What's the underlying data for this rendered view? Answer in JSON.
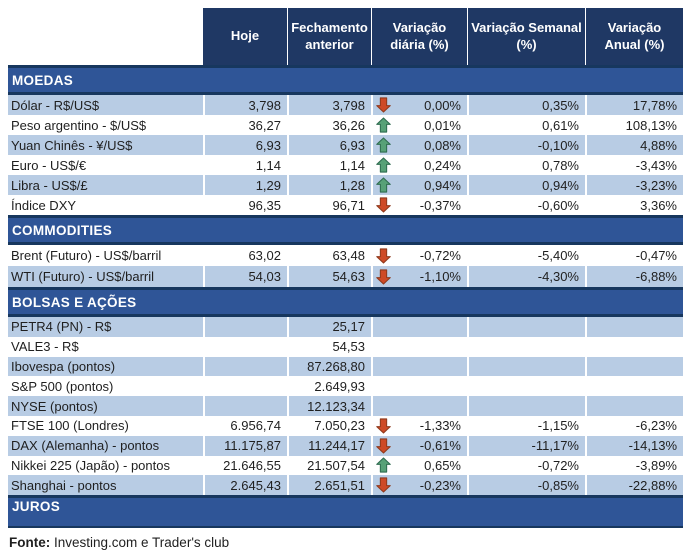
{
  "header": {
    "columns": [
      "Hoje",
      "Fechamento anterior",
      "Variação diária (%)",
      "Variação Semanal (%)",
      "Variação Anual (%)"
    ]
  },
  "sections": [
    {
      "title": "MOEDAS",
      "rows": [
        {
          "label": "Dólar - R$/US$",
          "hoje": "3,798",
          "fechamento": "3,798",
          "arrow": "down",
          "diaria": "0,00%",
          "semanal": "0,35%",
          "anual": "17,78%"
        },
        {
          "label": "Peso argentino - $/US$",
          "hoje": "36,27",
          "fechamento": "36,26",
          "arrow": "up",
          "diaria": "0,01%",
          "semanal": "0,61%",
          "anual": "108,13%"
        },
        {
          "label": "Yuan Chinês - ¥/US$",
          "hoje": "6,93",
          "fechamento": "6,93",
          "arrow": "up",
          "diaria": "0,08%",
          "semanal": "-0,10%",
          "anual": "4,88%"
        },
        {
          "label": "Euro - US$/€",
          "hoje": "1,14",
          "fechamento": "1,14",
          "arrow": "up",
          "diaria": "0,24%",
          "semanal": "0,78%",
          "anual": "-3,43%"
        },
        {
          "label": "Libra - US$/£",
          "hoje": "1,29",
          "fechamento": "1,28",
          "arrow": "up",
          "diaria": "0,94%",
          "semanal": "0,94%",
          "anual": "-3,23%"
        },
        {
          "label": "Índice DXY",
          "hoje": "96,35",
          "fechamento": "96,71",
          "arrow": "down",
          "diaria": "-0,37%",
          "semanal": "-0,60%",
          "anual": "3,36%"
        }
      ]
    },
    {
      "title": "COMMODITIES",
      "rows": [
        {
          "label": "Brent (Futuro) - US$/barril",
          "hoje": "63,02",
          "fechamento": "63,48",
          "arrow": "down",
          "diaria": "-0,72%",
          "semanal": "-5,40%",
          "anual": "-0,47%"
        },
        {
          "label": "WTI (Futuro) - US$/barril",
          "hoje": "54,03",
          "fechamento": "54,63",
          "arrow": "down",
          "diaria": "-1,10%",
          "semanal": "-4,30%",
          "anual": "-6,88%"
        }
      ]
    },
    {
      "title": "BOLSAS E AÇÕES",
      "rows": [
        {
          "label": "PETR4 (PN) - R$",
          "hoje": "",
          "fechamento": "25,17",
          "arrow": null,
          "diaria": "",
          "semanal": "",
          "anual": ""
        },
        {
          "label": "VALE3 - R$",
          "hoje": "",
          "fechamento": "54,53",
          "arrow": null,
          "diaria": "",
          "semanal": "",
          "anual": ""
        },
        {
          "label": "Ibovespa (pontos)",
          "hoje": "",
          "fechamento": "87.268,80",
          "arrow": null,
          "diaria": "",
          "semanal": "",
          "anual": ""
        },
        {
          "label": "S&P 500 (pontos)",
          "hoje": "",
          "fechamento": "2.649,93",
          "arrow": null,
          "diaria": "",
          "semanal": "",
          "anual": ""
        },
        {
          "label": "NYSE (pontos)",
          "hoje": "",
          "fechamento": "12.123,34",
          "arrow": null,
          "diaria": "",
          "semanal": "",
          "anual": ""
        },
        {
          "label": "FTSE 100 (Londres)",
          "hoje": "6.956,74",
          "fechamento": "7.050,23",
          "arrow": "down",
          "diaria": "-1,33%",
          "semanal": "-1,15%",
          "anual": "-6,23%"
        },
        {
          "label": "DAX (Alemanha) - pontos",
          "hoje": "11.175,87",
          "fechamento": "11.244,17",
          "arrow": "down",
          "diaria": "-0,61%",
          "semanal": "-11,17%",
          "anual": "-14,13%"
        },
        {
          "label": "Nikkei 225 (Japão) - pontos",
          "hoje": "21.646,55",
          "fechamento": "21.507,54",
          "arrow": "up",
          "diaria": "0,65%",
          "semanal": "-0,72%",
          "anual": "-3,89%"
        },
        {
          "label": "Shanghai - pontos",
          "hoje": "2.645,43",
          "fechamento": "2.651,51",
          "arrow": "down",
          "diaria": "-0,23%",
          "semanal": "-0,85%",
          "anual": "-22,88%"
        }
      ]
    },
    {
      "title": "JUROS",
      "rows": []
    }
  ],
  "footer": {
    "source_label": "Fonte:",
    "source_text": " Investing.com e Trader's club"
  },
  "colors": {
    "header_bg": "#1F3864",
    "section_banner_bg": "#2F5597",
    "dark_border": "#17375E",
    "row_alt_bg": "#B8CCE4",
    "up_arrow_fill": "#57A177",
    "up_arrow_stroke": "#2E6B4F",
    "down_arrow_fill": "#CE4A26",
    "down_arrow_stroke": "#8E3A1D"
  }
}
